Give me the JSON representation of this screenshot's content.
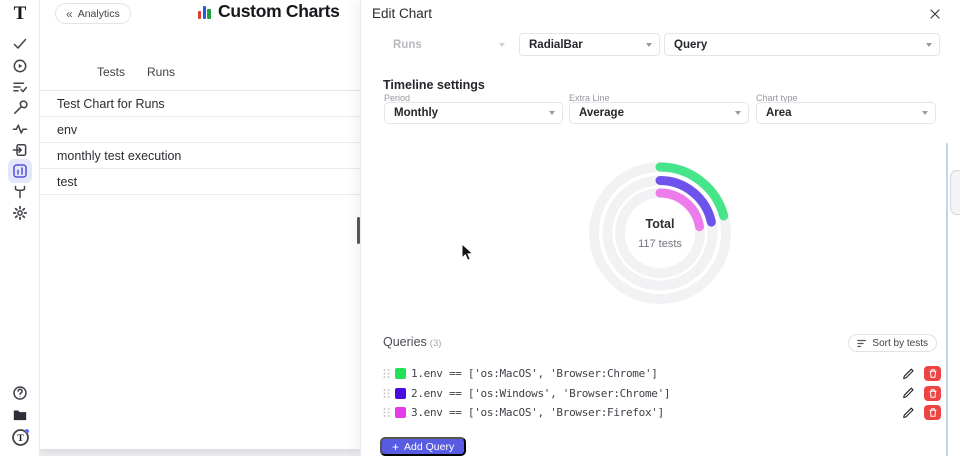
{
  "brand": {
    "logo_text": "T",
    "avatar_initial": "T"
  },
  "sidebar": {
    "icons": [
      "check",
      "record",
      "list-check",
      "wrench",
      "activity",
      "import",
      "bar-chart",
      "fork",
      "gear"
    ],
    "active_icon": "bar-chart",
    "bottom_icons": [
      "help",
      "library",
      "profile"
    ],
    "accent": "#4f54d8"
  },
  "list_panel": {
    "back_chevron": "«",
    "back_label": "Analytics",
    "title": "Custom Charts",
    "title_icon_colors": [
      "#E23B30",
      "#2957E8",
      "#1FA23C"
    ],
    "tabs": [
      {
        "label": "Tests"
      },
      {
        "label": "Runs"
      }
    ],
    "items": [
      "Test Chart for Runs",
      "env",
      "monthly test execution",
      "test"
    ]
  },
  "edit_panel": {
    "title": "Edit Chart",
    "top_selects": {
      "source": {
        "value": "Runs",
        "disabled": true
      },
      "chart_type": {
        "value": "RadialBar"
      },
      "mode": {
        "value": "Query"
      }
    },
    "timeline": {
      "heading": "Timeline settings",
      "fields": [
        {
          "label": "Period",
          "value": "Monthly"
        },
        {
          "label": "Extra Line",
          "value": "Average"
        },
        {
          "label": "Chart type",
          "value": "Area"
        }
      ]
    },
    "queries": {
      "heading": "Queries",
      "count": "(3)",
      "sort_label": "Sort by tests",
      "rows": [
        {
          "index": "1.",
          "query": "env == ['os:MacOS', 'Browser:Chrome']",
          "color": "#21E256"
        },
        {
          "index": "2.",
          "query": "env == ['os:Windows', 'Browser:Chrome']",
          "color": "#4A0BE3"
        },
        {
          "index": "3.",
          "query": "env == ['os:MacOS', 'Browser:Firefox']",
          "color": "#E83BE8"
        }
      ],
      "add_plus": "+",
      "add_label": "Add Query",
      "add_color": "#585CE2",
      "delete_color": "#EF4444"
    }
  },
  "chart_data": {
    "type": "radialBar",
    "center_label": "Total",
    "center_value": "117 tests",
    "total_tests": 117,
    "track_color": "#F2F2F5",
    "ring_radii": [
      66,
      52.5,
      40
    ],
    "start_angle_deg": 0,
    "legend": "none",
    "grid": false,
    "series": [
      {
        "name": "env == ['os:MacOS', 'Browser:Chrome']",
        "color": "#46E589",
        "sweep_deg": 75
      },
      {
        "name": "env == ['os:Windows', 'Browser:Chrome']",
        "color": "#6E52EC",
        "sweep_deg": 78
      },
      {
        "name": "env == ['os:MacOS', 'Browser:Firefox']",
        "color": "#EC7BEC",
        "sweep_deg": 81
      }
    ]
  }
}
